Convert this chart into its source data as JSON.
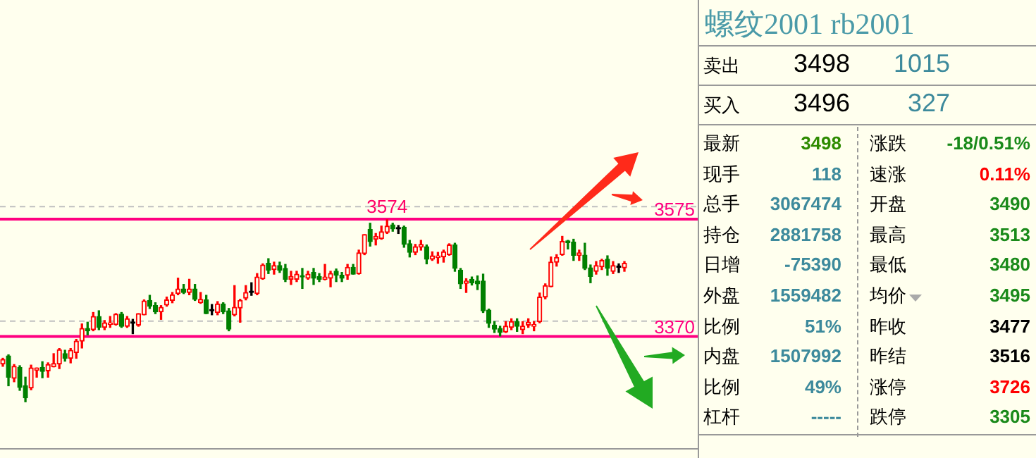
{
  "chart_data": [
    {
      "type": "candlestick",
      "categories": [
        null,
        null,
        null,
        null,
        null,
        null,
        null,
        null,
        null,
        null,
        null,
        null,
        null,
        null,
        null,
        null,
        null,
        null,
        null,
        null,
        null,
        null,
        null,
        null,
        null,
        null,
        null,
        null,
        null,
        null,
        null,
        null,
        null,
        null,
        null,
        null,
        null,
        null,
        null,
        null,
        null,
        null,
        null,
        null,
        null,
        null,
        null,
        null,
        null,
        null,
        null,
        null,
        null,
        null,
        null,
        null,
        null,
        null,
        null,
        null,
        null,
        null,
        null,
        null,
        null,
        null,
        null,
        null,
        null,
        null,
        null,
        null,
        null,
        null,
        null,
        null,
        null,
        null,
        null,
        null,
        null,
        null,
        null,
        null,
        null,
        null,
        null,
        null,
        null,
        null,
        null,
        null,
        null,
        null,
        null,
        null,
        null,
        null,
        null,
        null,
        null,
        null,
        null,
        null,
        null,
        null,
        null,
        null,
        null,
        null,
        null
      ],
      "ohlc": [
        [
          3322,
          3332,
          3318,
          3330
        ],
        [
          3336,
          3338,
          3284,
          3299
        ],
        [
          3297,
          3321,
          3291,
          3318
        ],
        [
          3316,
          3319,
          3276,
          3281
        ],
        [
          3284,
          3299,
          3256,
          3263
        ],
        [
          3280,
          3320,
          3277,
          3315
        ],
        [
          3311,
          3315,
          3299,
          3315
        ],
        [
          3316,
          3326,
          3298,
          3309
        ],
        [
          3310,
          3324,
          3299,
          3321
        ],
        [
          3317,
          3340,
          3317,
          3323
        ],
        [
          3322,
          3349,
          3314,
          3347
        ],
        [
          3340,
          3346,
          3327,
          3332
        ],
        [
          3332,
          3349,
          3324,
          3346
        ],
        [
          3342,
          3365,
          3332,
          3362
        ],
        [
          3362,
          3392,
          3350,
          3384
        ],
        [
          3384,
          3395,
          3373,
          3380
        ],
        [
          3382,
          3412,
          3380,
          3405
        ],
        [
          3405,
          3415,
          3382,
          3386
        ],
        [
          3386,
          3398,
          3382,
          3394
        ],
        [
          3391,
          3405,
          3386,
          3394
        ],
        [
          3391,
          3410,
          3390,
          3409
        ],
        [
          3409,
          3412,
          3386,
          3388
        ],
        [
          3388,
          3405,
          3386,
          3401
        ],
        [
          3393,
          3400,
          3375,
          3393
        ],
        [
          3390,
          3410,
          3388,
          3410
        ],
        [
          3408,
          3434,
          3408,
          3432
        ],
        [
          3433,
          3442,
          3419,
          3423
        ],
        [
          3424,
          3429,
          3410,
          3413
        ],
        [
          3413,
          3424,
          3400,
          3421
        ],
        [
          3425,
          3439,
          3423,
          3434
        ],
        [
          3433,
          3447,
          3429,
          3443
        ],
        [
          3445,
          3472,
          3443,
          3453
        ],
        [
          3453,
          3461,
          3445,
          3447
        ],
        [
          3447,
          3470,
          3443,
          3453
        ],
        [
          3453,
          3461,
          3433,
          3435
        ],
        [
          3429,
          3447,
          3428,
          3435
        ],
        [
          3434,
          3442,
          3410,
          3410
        ],
        [
          3415,
          3426,
          3408,
          3415
        ],
        [
          3412,
          3431,
          3408,
          3427
        ],
        [
          3427,
          3429,
          3410,
          3413
        ],
        [
          3415,
          3419,
          3380,
          3383
        ],
        [
          3408,
          3459,
          3406,
          3421
        ],
        [
          3420,
          3435,
          3395,
          3433
        ],
        [
          3437,
          3459,
          3434,
          3447
        ],
        [
          3447,
          3464,
          3442,
          3447
        ],
        [
          3445,
          3480,
          3443,
          3474
        ],
        [
          3471,
          3497,
          3470,
          3495
        ],
        [
          3498,
          3506,
          3480,
          3486
        ],
        [
          3487,
          3500,
          3479,
          3494
        ],
        [
          3494,
          3500,
          3482,
          3486
        ],
        [
          3489,
          3496,
          3466,
          3470
        ],
        [
          3470,
          3484,
          3461,
          3475
        ],
        [
          3470,
          3484,
          3466,
          3479
        ],
        [
          3476,
          3489,
          3454,
          3474
        ],
        [
          3472,
          3484,
          3470,
          3479
        ],
        [
          3482,
          3489,
          3461,
          3472
        ],
        [
          3475,
          3480,
          3466,
          3470
        ],
        [
          3470,
          3496,
          3469,
          3474
        ],
        [
          3472,
          3484,
          3457,
          3480
        ],
        [
          3484,
          3488,
          3466,
          3477
        ],
        [
          3477,
          3482,
          3466,
          3472
        ],
        [
          3477,
          3496,
          3470,
          3491
        ],
        [
          3491,
          3496,
          3479,
          3479
        ],
        [
          3480,
          3521,
          3479,
          3516
        ],
        [
          3515,
          3548,
          3513,
          3548
        ],
        [
          3557,
          3568,
          3528,
          3536
        ],
        [
          3540,
          3550,
          3530,
          3545
        ],
        [
          3541,
          3563,
          3540,
          3553
        ],
        [
          3552,
          3574,
          3550,
          3563
        ],
        [
          3565,
          3568,
          3554,
          3558
        ],
        [
          3558,
          3564,
          3550,
          3558
        ],
        [
          3561,
          3563,
          3526,
          3531
        ],
        [
          3532,
          3538,
          3509,
          3517
        ],
        [
          3517,
          3531,
          3513,
          3527
        ],
        [
          3526,
          3538,
          3521,
          3531
        ],
        [
          3527,
          3530,
          3497,
          3505
        ],
        [
          3505,
          3518,
          3503,
          3511
        ],
        [
          3508,
          3517,
          3498,
          3511
        ],
        [
          3509,
          3521,
          3500,
          3518
        ],
        [
          3513,
          3532,
          3512,
          3530
        ],
        [
          3530,
          3533,
          3484,
          3489
        ],
        [
          3486,
          3489,
          3454,
          3462
        ],
        [
          3463,
          3471,
          3447,
          3467
        ],
        [
          3470,
          3474,
          3460,
          3464
        ],
        [
          3467,
          3476,
          3452,
          3462
        ],
        [
          3467,
          3479,
          3412,
          3415
        ],
        [
          3416,
          3418,
          3386,
          3393
        ],
        [
          3390,
          3396,
          3377,
          3383
        ],
        [
          3384,
          3388,
          3371,
          3377
        ],
        [
          3378,
          3396,
          3377,
          3388
        ],
        [
          3386,
          3401,
          3382,
          3396
        ],
        [
          3396,
          3401,
          3379,
          3388
        ],
        [
          3382,
          3396,
          3375,
          3388
        ],
        [
          3390,
          3401,
          3386,
          3395
        ],
        [
          3388,
          3396,
          3380,
          3391
        ],
        [
          3396,
          3446,
          3394,
          3439
        ],
        [
          3439,
          3462,
          3436,
          3459
        ],
        [
          3457,
          3509,
          3457,
          3500
        ],
        [
          3500,
          3513,
          3493,
          3508
        ],
        [
          3513,
          3545,
          3512,
          3536
        ],
        [
          3537,
          3538,
          3523,
          3534
        ],
        [
          3535,
          3540,
          3503,
          3512
        ],
        [
          3512,
          3521,
          3503,
          3516
        ],
        [
          3512,
          3533,
          3487,
          3489
        ],
        [
          3490,
          3495,
          3464,
          3475
        ],
        [
          3484,
          3501,
          3479,
          3494
        ],
        [
          3492,
          3505,
          3487,
          3503
        ],
        [
          3505,
          3511,
          3477,
          3489
        ],
        [
          3484,
          3501,
          3480,
          3494
        ],
        [
          3491,
          3497,
          3482,
          3491
        ],
        [
          3490,
          3501,
          3484,
          3498
        ]
      ],
      "ylim": [
        3175,
        3958
      ],
      "yticks": [
        3370,
        3575
      ],
      "ref_lines": [
        {
          "axis": "y",
          "value": 3575,
          "color": "#ff0080",
          "line_style": "solid"
        },
        {
          "axis": "y",
          "value": 3370,
          "color": "#ff0080",
          "line_style": "solid"
        },
        {
          "axis": "y",
          "value": 3597,
          "color": "#c0c0c0",
          "line_style": "dashed"
        },
        {
          "axis": "y",
          "value": 3397,
          "color": "#c0c0c0",
          "line_style": "dashed"
        }
      ],
      "annotations": [
        {
          "text": "3574",
          "y": 3574
        }
      ],
      "legend": false
    },
    {
      "type": "other",
      "title": "螺纹2001 rb2001",
      "annotations": [
        "卖出",
        "3498",
        "1015",
        "买入",
        "3496",
        "327",
        "最新",
        "3498",
        "涨跌",
        "-18/0.51%",
        "现手",
        "118",
        "速涨",
        "0.11%",
        "总手",
        "3067474",
        "开盘",
        "3490",
        "持仓",
        "2881758",
        "最高",
        "3513",
        "日增",
        "-75390",
        "最低",
        "3480",
        "外盘",
        "1559482",
        "均价",
        "3495",
        "比例",
        "51%",
        "昨收",
        "3477",
        "内盘",
        "1507992",
        "昨结",
        "3516",
        "比例",
        "49%",
        "涨停",
        "3726",
        "杠杆",
        "-----",
        "跌停",
        "3305"
      ]
    }
  ]
}
